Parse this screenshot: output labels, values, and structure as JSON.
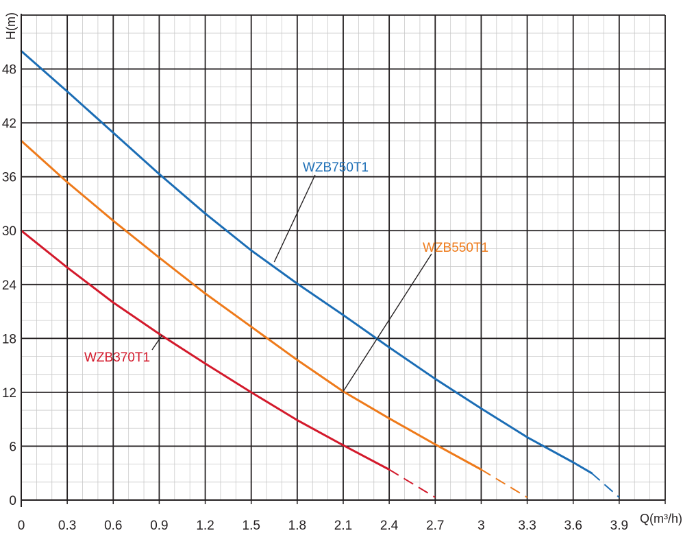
{
  "chart_data": {
    "type": "line",
    "title": "",
    "xlabel": "Q(m³/h)",
    "ylabel": "H(m)",
    "xlim": [
      0,
      4.2
    ],
    "ylim": [
      0,
      54
    ],
    "x_ticks": [
      "0",
      "0.3",
      "0.6",
      "0.9",
      "1.2",
      "1.5",
      "1.8",
      "2.1",
      "2.4",
      "2.7",
      "3",
      "3.3",
      "3.6",
      "3.9"
    ],
    "y_ticks": [
      "0",
      "6",
      "12",
      "18",
      "24",
      "30",
      "36",
      "42",
      "48"
    ],
    "grid": true,
    "series": [
      {
        "name": "WZB750T1",
        "color": "#1b6db5",
        "x": [
          0,
          0.3,
          0.6,
          0.9,
          1.2,
          1.5,
          1.8,
          2.1,
          2.4,
          2.7,
          3.0,
          3.3,
          3.6,
          3.72
        ],
        "y": [
          50.0,
          45.5,
          40.9,
          36.3,
          31.9,
          27.8,
          24.1,
          20.6,
          17.0,
          13.5,
          10.2,
          7.0,
          4.2,
          3.0
        ],
        "dashed_x": [
          3.72,
          3.9
        ],
        "dashed_y": [
          3.0,
          0.3
        ],
        "label_anchor": [
          1.65,
          26.5
        ]
      },
      {
        "name": "WZB550T1",
        "color": "#ee7a1a",
        "x": [
          0,
          0.3,
          0.6,
          0.9,
          1.2,
          1.5,
          1.8,
          2.1,
          2.4,
          2.7,
          3.0
        ],
        "y": [
          40.0,
          35.4,
          31.1,
          27.0,
          23.0,
          19.3,
          15.6,
          12.1,
          9.1,
          6.2,
          3.4
        ],
        "dashed_x": [
          3.0,
          3.3
        ],
        "dashed_y": [
          3.4,
          0.3
        ],
        "label_anchor": [
          2.1,
          12.1
        ]
      },
      {
        "name": "WZB370T1",
        "color": "#d3192b",
        "x": [
          0,
          0.3,
          0.6,
          0.9,
          1.2,
          1.5,
          1.8,
          2.1,
          2.4
        ],
        "y": [
          30.0,
          25.9,
          22.0,
          18.5,
          15.2,
          12.0,
          8.9,
          6.1,
          3.4
        ],
        "dashed_x": [
          2.4,
          2.7
        ],
        "dashed_y": [
          3.4,
          0.3
        ],
        "label_anchor": [
          0.92,
          18.4
        ]
      }
    ]
  }
}
